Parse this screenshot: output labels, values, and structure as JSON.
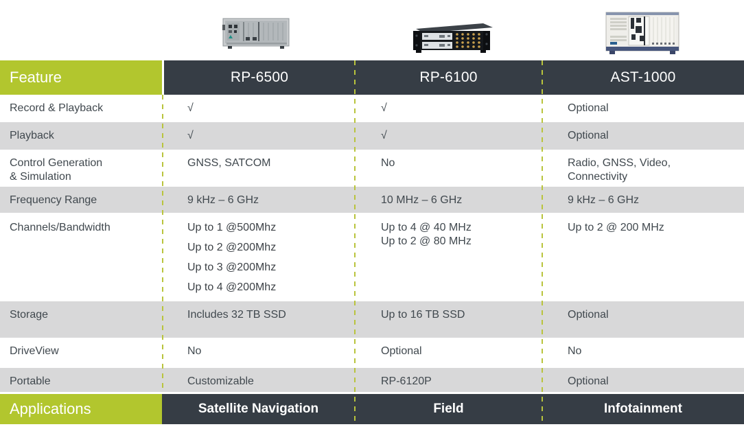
{
  "header": {
    "feature_label": "Feature"
  },
  "footer": {
    "applications_label": "Applications"
  },
  "products": [
    {
      "name": "RP-6500",
      "image": "gray-benchtop-recorder",
      "application": "Satellite Navigation"
    },
    {
      "name": "RP-6100",
      "image": "black-rack-unit",
      "application": "Field"
    },
    {
      "name": "AST-1000",
      "image": "white-pxi-chassis",
      "application": "Infotainment"
    }
  ],
  "rows": [
    {
      "feature": [
        "Record & Playback"
      ],
      "cells": [
        [
          "√"
        ],
        [
          "√"
        ],
        [
          "Optional"
        ]
      ]
    },
    {
      "feature": [
        "Playback"
      ],
      "cells": [
        [
          "√"
        ],
        [
          "√"
        ],
        [
          "Optional"
        ]
      ]
    },
    {
      "feature": [
        "Control Generation",
        "& Simulation"
      ],
      "cells": [
        [
          "GNSS, SATCOM"
        ],
        [
          "No"
        ],
        [
          "Radio, GNSS, Video,",
          "Connectivity"
        ]
      ]
    },
    {
      "feature": [
        "Frequency Range"
      ],
      "cells": [
        [
          "9 kHz – 6 GHz"
        ],
        [
          "10 MHz – 6 GHz"
        ],
        [
          "9 kHz – 6 GHz"
        ]
      ]
    },
    {
      "feature": [
        "Channels/Bandwidth"
      ],
      "cells": [
        [
          "Up to 1 @500Mhz",
          "Up to 2 @200Mhz",
          "Up to 3 @200Mhz",
          "Up to 4 @200Mhz"
        ],
        [
          "Up to 4 @ 40 MHz",
          "Up to 2 @ 80 MHz"
        ],
        [
          "Up to 2 @ 200 MHz"
        ]
      ]
    },
    {
      "feature": [
        "Storage"
      ],
      "cells": [
        [
          "Includes 32 TB SSD"
        ],
        [
          "Up to 16 TB SSD"
        ],
        [
          "Optional"
        ]
      ]
    },
    {
      "feature": [
        "DriveView"
      ],
      "cells": [
        [
          "No"
        ],
        [
          "Optional"
        ],
        [
          "No"
        ]
      ]
    },
    {
      "feature": [
        "Portable"
      ],
      "cells": [
        [
          "Customizable"
        ],
        [
          "RP-6120P"
        ],
        [
          "Optional"
        ]
      ]
    }
  ],
  "colors": {
    "accent_green": "#b2c62e",
    "header_dark": "#363d45",
    "row_gray": "#d8d8d9",
    "body_text": "#40484e",
    "dash_green": "#b9c43c"
  }
}
